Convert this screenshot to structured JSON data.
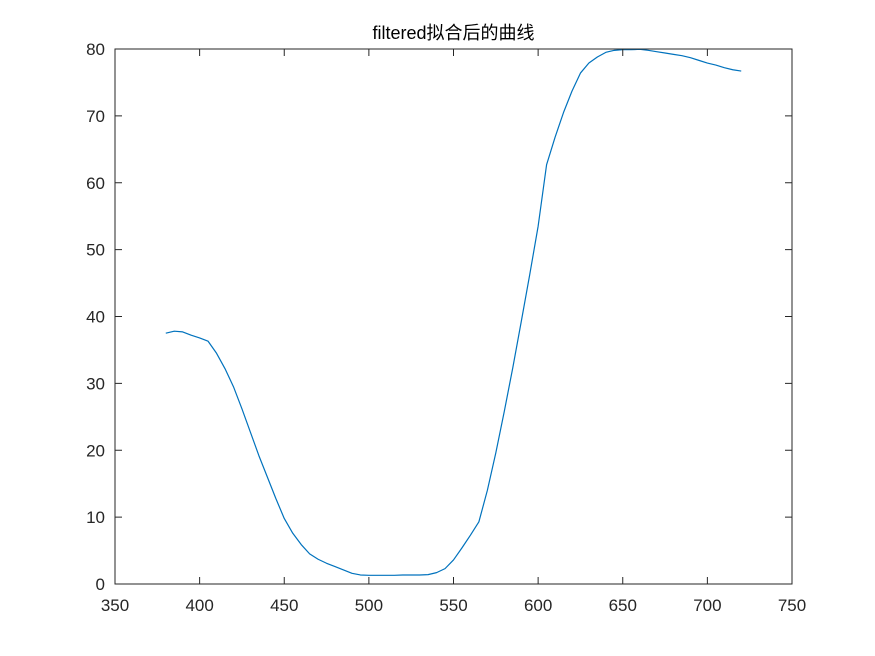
{
  "chart_data": {
    "type": "line",
    "title": "filtered拟合后的曲线",
    "xlabel": "",
    "ylabel": "",
    "xlim": [
      350,
      750
    ],
    "ylim": [
      0,
      80
    ],
    "xticks": [
      350,
      400,
      450,
      500,
      550,
      600,
      650,
      700,
      750
    ],
    "yticks": [
      0,
      10,
      20,
      30,
      40,
      50,
      60,
      70,
      80
    ],
    "grid": false,
    "line_color": "#0072BD",
    "axis_color": "#262626",
    "series": [
      {
        "x": [
          380,
          385,
          390,
          395,
          400,
          405,
          410,
          415,
          420,
          425,
          430,
          435,
          440,
          445,
          450,
          455,
          460,
          465,
          470,
          475,
          480,
          485,
          490,
          495,
          500,
          505,
          510,
          515,
          520,
          525,
          530,
          535,
          540,
          545,
          550,
          555,
          560,
          565,
          570,
          575,
          580,
          585,
          590,
          595,
          600,
          605,
          610,
          615,
          620,
          625,
          630,
          635,
          640,
          645,
          650,
          655,
          660,
          665,
          670,
          675,
          680,
          685,
          690,
          695,
          700,
          705,
          710,
          715,
          720
        ],
        "y": [
          37.5,
          37.8,
          37.7,
          37.2,
          36.8,
          36.3,
          34.5,
          32.2,
          29.5,
          26.2,
          22.7,
          19.2,
          16.0,
          12.8,
          9.8,
          7.6,
          5.9,
          4.5,
          3.7,
          3.1,
          2.6,
          2.1,
          1.6,
          1.35,
          1.3,
          1.3,
          1.3,
          1.3,
          1.35,
          1.35,
          1.35,
          1.4,
          1.7,
          2.3,
          3.6,
          5.4,
          7.3,
          9.3,
          14.0,
          19.6,
          25.8,
          32.3,
          39.2,
          46.2,
          53.5,
          62.7,
          66.8,
          70.5,
          73.7,
          76.4,
          77.9,
          78.8,
          79.5,
          79.8,
          79.9,
          79.9,
          79.95,
          79.8,
          79.6,
          79.4,
          79.2,
          79.0,
          78.7,
          78.3,
          77.9,
          77.6,
          77.2,
          76.9,
          76.7
        ]
      }
    ]
  }
}
